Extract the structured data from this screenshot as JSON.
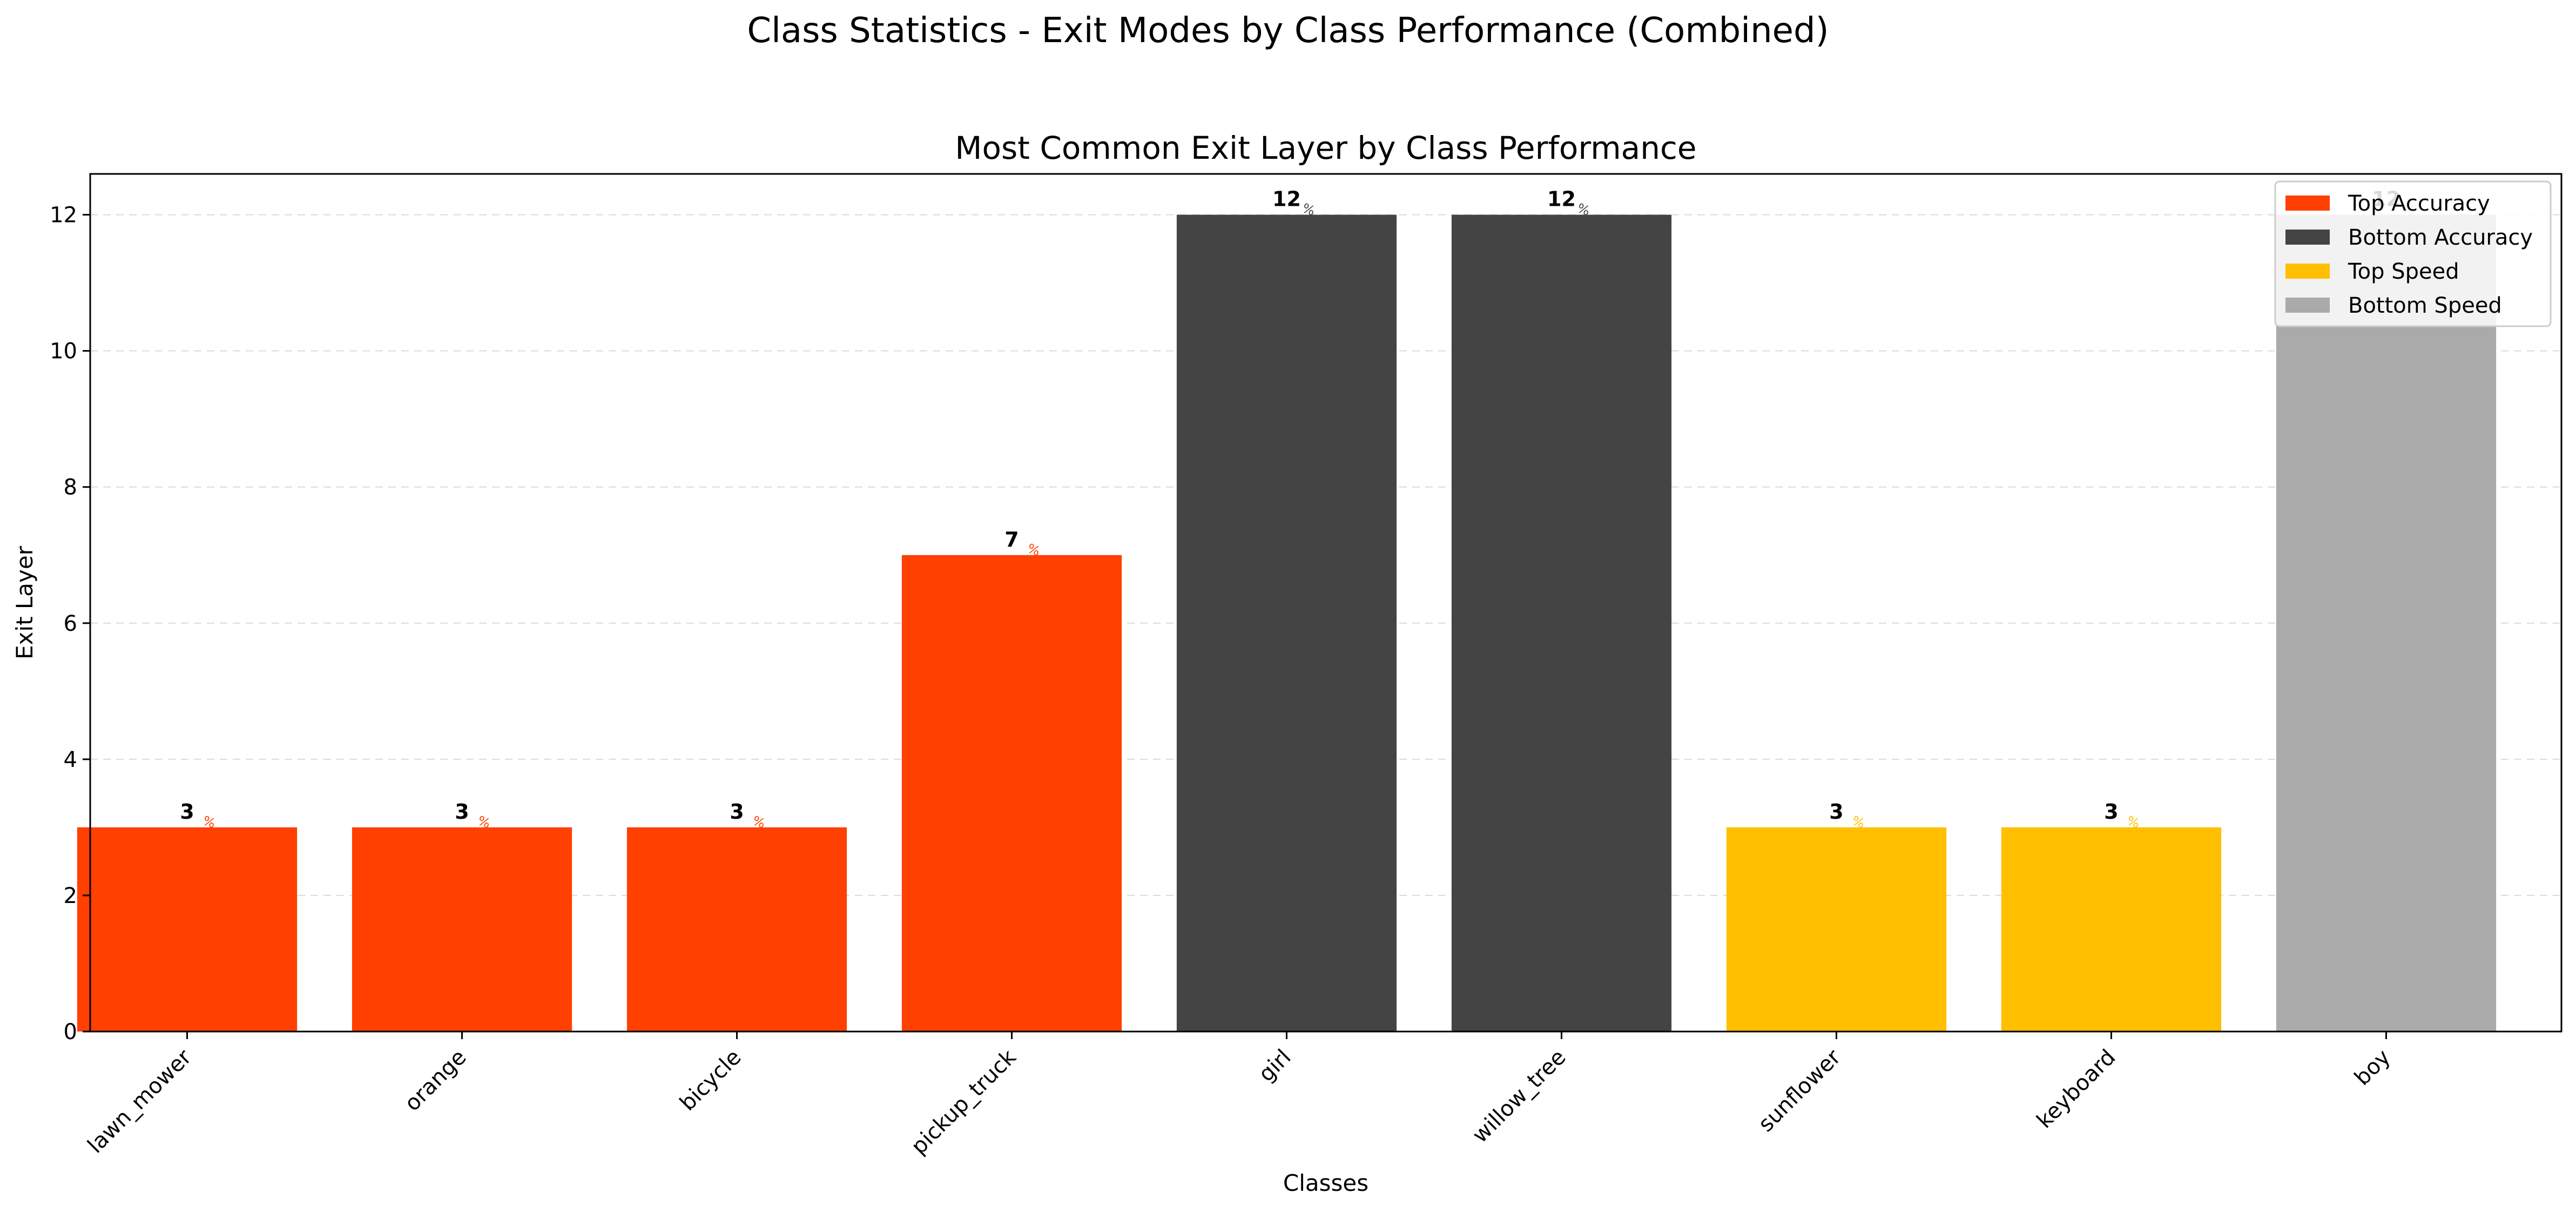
{
  "chart_data": {
    "type": "bar",
    "suptitle": "Class Statistics - Exit Modes by Class Performance (Combined)",
    "title": "Most Common Exit Layer by Class Performance",
    "xlabel": "Classes",
    "ylabel": "Exit Layer",
    "ylim": [
      0,
      12.6
    ],
    "yticks": [
      "0",
      "2",
      "4",
      "6",
      "8",
      "10",
      "12"
    ],
    "grid": "y, dashed",
    "legend_position": "top-right",
    "categories": [
      "lawn_mower",
      "orange",
      "bicycle",
      "pickup_truck",
      "girl",
      "willow_tree",
      "sunflower",
      "keyboard",
      "boy"
    ],
    "values": [
      3,
      3,
      3,
      7,
      12,
      12,
      3,
      3,
      12
    ],
    "value_labels": [
      "3",
      "3",
      "3",
      "7",
      "12",
      "12",
      "3",
      "3",
      "12"
    ],
    "groups": [
      "Top Accuracy",
      "Top Accuracy",
      "Top Accuracy",
      "Top Accuracy",
      "Bottom Accuracy",
      "Bottom Accuracy",
      "Top Speed",
      "Top Speed",
      "Bottom Speed"
    ],
    "legend": [
      {
        "name": "Top Accuracy",
        "color": "#ff4000"
      },
      {
        "name": "Bottom Accuracy",
        "color": "#444444"
      },
      {
        "name": "Top Speed",
        "color": "#ffbe00"
      },
      {
        "name": "Bottom Speed",
        "color": "#aaaaaa"
      }
    ]
  }
}
